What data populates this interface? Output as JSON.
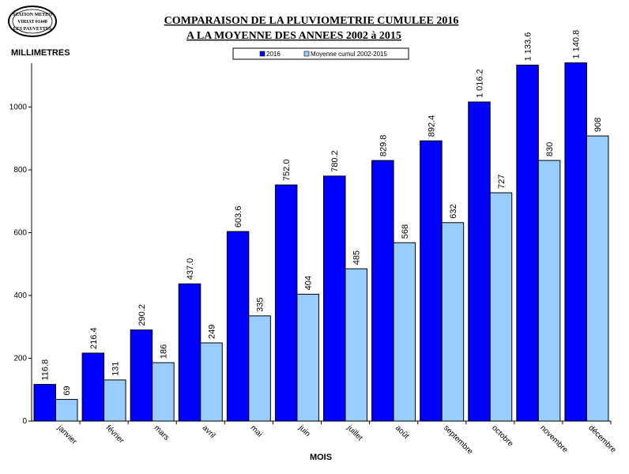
{
  "stamp": {
    "top": "STATION METEO",
    "middle": "VIRIAT 01440",
    "bottom": "LES PAUVETTES"
  },
  "chart_data": {
    "type": "bar",
    "title_line1": "COMPARAISON DE LA PLUVIOMETRIE CUMULEE 2016",
    "title_line2": "A LA MOYENNE DES ANNEES 2002 à 2015",
    "ylabel": "MILLIMETRES",
    "xlabel": "MOIS",
    "ylim": [
      0,
      1200
    ],
    "yticks": [
      0,
      200,
      400,
      600,
      800,
      1000
    ],
    "legend_position": "top",
    "categories": [
      "janvier",
      "février",
      "mars",
      "avril",
      "mai",
      "juin",
      "juillet",
      "août",
      "septembre",
      "octobre",
      "novembre",
      "décembre"
    ],
    "series": [
      {
        "name": "2016",
        "color": "#0000ff",
        "values": [
          116.8,
          216.4,
          290.2,
          437.0,
          603.6,
          752.0,
          780.2,
          829.8,
          892.4,
          1016.2,
          1133.6,
          1140.8
        ],
        "labels": [
          "116.8",
          "216.4",
          "290.2",
          "437.0",
          "603.6",
          "752.0",
          "780.2",
          "829.8",
          "892.4",
          "1 016.2",
          "1 133.6",
          "1 140.8"
        ]
      },
      {
        "name": "Moyenne cumul 2002-2015",
        "color": "#99ccff",
        "values": [
          69,
          131,
          186,
          249,
          335,
          404,
          485,
          568,
          632,
          727,
          830,
          908
        ],
        "labels": [
          "69",
          "131",
          "186",
          "249",
          "335",
          "404",
          "485",
          "568",
          "632",
          "727",
          "830",
          "908"
        ]
      }
    ]
  }
}
